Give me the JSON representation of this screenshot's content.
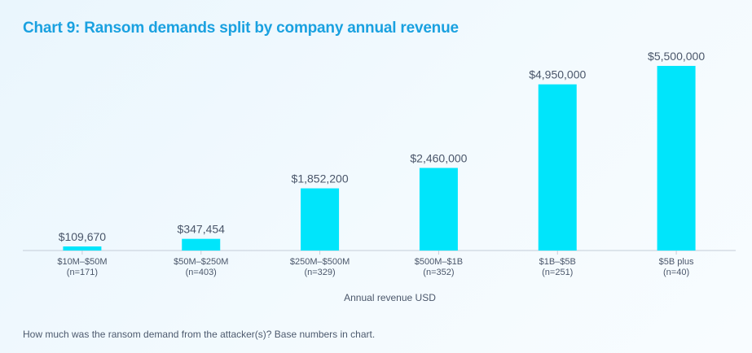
{
  "title": "Chart 9: Ransom demands split by company annual revenue",
  "footnote": "How much was the ransom demand from the attacker(s)? Base numbers in chart.",
  "colors": {
    "bar": "#00e5fb",
    "value_label": "#4a566a",
    "axis": "#c4ccd8",
    "title": "#1aa1e0"
  },
  "chart_data": {
    "type": "bar",
    "title": "Chart 9: Ransom demands split by company annual revenue",
    "xlabel": "Annual revenue USD",
    "ylabel": "",
    "categories": [
      "$10M–$50M",
      "$50M–$250M",
      "$250M–$500M",
      "$500M–$1B",
      "$1B–$5B",
      "$5B plus"
    ],
    "category_bases": [
      "(n=171)",
      "(n=403)",
      "(n=329)",
      "(n=352)",
      "(n=251)",
      "(n=40)"
    ],
    "values": [
      109670,
      347454,
      1852200,
      2460000,
      4950000,
      5500000
    ],
    "value_labels": [
      "$109,670",
      "$347,454",
      "$1,852,200",
      "$2,460,000",
      "$4,950,000",
      "$5,500,000"
    ],
    "ylim": [
      0,
      5500000
    ],
    "grid": false,
    "legend": "none"
  }
}
